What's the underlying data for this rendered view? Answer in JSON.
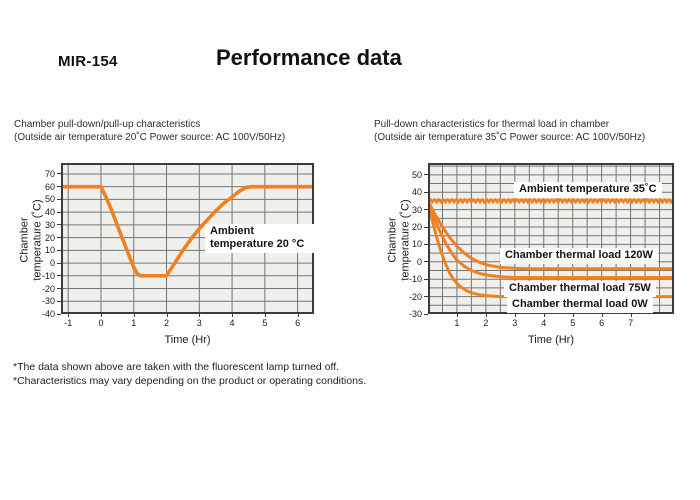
{
  "header": {
    "model": "MIR-154",
    "title": "Performance data"
  },
  "footnotes": [
    "*The data shown above are taken with the fluorescent lamp turned off.",
    "*Characteristics may vary depending on the product or operating conditions."
  ],
  "colors": {
    "curve_orange": "#F08121",
    "plot_bg": "#EFEFEC",
    "grid": "#747474",
    "border": "#3B3B3B"
  },
  "chart_data": [
    {
      "type": "line",
      "caption_line1": "Chamber pull-down/pull-up characteristics",
      "caption_line2": "(Outside air temperature 20˚C Power source: AC 100V/50Hz)",
      "y_axis_title_line1": "Chamber",
      "y_axis_title_line2": "temperature (˚C)",
      "x_axis_title": "Time (Hr)",
      "xaxis": {
        "min": -1.22,
        "max": 6.5,
        "grid_step": 1,
        "ticks": [
          -1,
          0,
          1,
          2,
          3,
          4,
          5,
          6
        ]
      },
      "yaxis": {
        "min": -40,
        "max": 78.6,
        "grid_step": 10,
        "ticks": [
          70,
          60,
          50,
          40,
          30,
          20,
          10,
          0,
          -10,
          -20,
          -30,
          -40
        ]
      },
      "series": [
        {
          "name": "chamber-temperature",
          "color": "#F08121",
          "width": 3.6,
          "points": [
            [
              -1.22,
              60
            ],
            [
              0,
              60
            ],
            [
              0.15,
              52
            ],
            [
              0.3,
              43
            ],
            [
              0.45,
              33
            ],
            [
              0.6,
              23
            ],
            [
              0.75,
              13
            ],
            [
              0.9,
              3
            ],
            [
              1.0,
              -3.5
            ],
            [
              1.1,
              -8
            ],
            [
              1.2,
              -10
            ],
            [
              2.0,
              -10
            ],
            [
              2.25,
              0
            ],
            [
              2.5,
              10
            ],
            [
              2.75,
              19
            ],
            [
              3.0,
              27
            ],
            [
              3.25,
              34
            ],
            [
              3.5,
              41
            ],
            [
              3.75,
              47
            ],
            [
              4.0,
              52
            ],
            [
              4.25,
              57
            ],
            [
              4.45,
              59.5
            ],
            [
              4.6,
              60
            ],
            [
              6.5,
              60
            ]
          ]
        }
      ],
      "annotations": [
        {
          "line1": "Ambient",
          "line2": "temperature 20 °C"
        }
      ]
    },
    {
      "type": "line",
      "caption_line1": "Pull-down characteristics for thermal load in chamber",
      "caption_line2": "(Outside air temperature 35˚C Power source: AC 100V/50Hz)",
      "y_axis_title_line1": "Chamber",
      "y_axis_title_line2": "temperature (˚C)",
      "x_axis_title": "Time (Hr)",
      "xaxis": {
        "min": 0,
        "max": 8.5,
        "grid_step": 0.5,
        "ticks": [
          1,
          2,
          3,
          4,
          5,
          6,
          7
        ]
      },
      "yaxis": {
        "min": -30,
        "max": 56.8,
        "grid_step": 5,
        "ticks": [
          50,
          40,
          30,
          20,
          10,
          0,
          -10,
          -20,
          -30
        ]
      },
      "series": [
        {
          "name": "chamber-thermal-load-120w",
          "color": "#F08121",
          "width": 3,
          "points": [
            [
              0,
              35
            ],
            [
              0.25,
              27
            ],
            [
              0.5,
              20
            ],
            [
              0.75,
              14
            ],
            [
              1.0,
              9
            ],
            [
              1.25,
              5
            ],
            [
              1.5,
              2
            ],
            [
              1.8,
              -0.5
            ],
            [
              2.1,
              -2
            ],
            [
              2.5,
              -3.2
            ],
            [
              3.0,
              -3.8
            ],
            [
              3.5,
              -4
            ],
            [
              8.5,
              -4
            ]
          ]
        },
        {
          "name": "chamber-thermal-load-75w",
          "color": "#F08121",
          "width": 3,
          "points": [
            [
              0,
              35
            ],
            [
              0.2,
              26
            ],
            [
              0.4,
              18
            ],
            [
              0.6,
              11
            ],
            [
              0.8,
              5.5
            ],
            [
              1.0,
              1
            ],
            [
              1.25,
              -2.5
            ],
            [
              1.5,
              -5
            ],
            [
              1.8,
              -6.8
            ],
            [
              2.1,
              -7.8
            ],
            [
              2.5,
              -8.6
            ],
            [
              3.0,
              -9
            ],
            [
              8.5,
              -9
            ]
          ]
        },
        {
          "name": "chamber-thermal-load-0w",
          "color": "#F08121",
          "width": 3,
          "points": [
            [
              0,
              35
            ],
            [
              0.15,
              24
            ],
            [
              0.3,
              14
            ],
            [
              0.45,
              6
            ],
            [
              0.6,
              -1
            ],
            [
              0.75,
              -6.5
            ],
            [
              0.9,
              -10.5
            ],
            [
              1.1,
              -14
            ],
            [
              1.3,
              -16.3
            ],
            [
              1.5,
              -17.8
            ],
            [
              1.8,
              -19
            ],
            [
              2.1,
              -19.6
            ],
            [
              2.5,
              -20
            ],
            [
              8.5,
              -20
            ]
          ]
        },
        {
          "name": "ambient-temperature-35c",
          "color": "#F08121",
          "width": 2.6,
          "style": "scallop",
          "value": 35,
          "amplitude": 1.7,
          "period": 0.15
        }
      ],
      "annotations": [
        {
          "text": "Ambient temperature 35˚C"
        },
        {
          "text": "Chamber thermal load 120W"
        },
        {
          "text": "Chamber thermal load 75W"
        },
        {
          "text": "Chamber thermal load 0W"
        }
      ]
    }
  ]
}
